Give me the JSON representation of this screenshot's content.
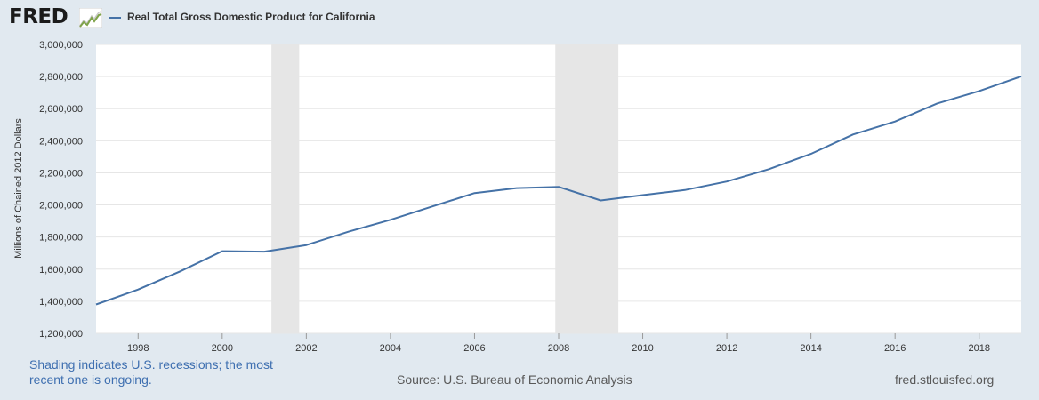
{
  "header": {
    "brand": "FRED",
    "brand_icon": "line-chart-icon",
    "legend_label": "Real Total Gross Domestic Product for California",
    "series_color": "#4572a7"
  },
  "footer": {
    "note": "Shading indicates U.S. recessions; the most recent one is ongoing.",
    "source": "Source: U.S. Bureau of Economic Analysis",
    "site": "fred.stlouisfed.org"
  },
  "chart_data": {
    "type": "line",
    "title": "",
    "xlabel": "",
    "ylabel": "Millions of Chained 2012 Dollars",
    "xlim": [
      1997,
      2019
    ],
    "ylim": [
      1200000,
      3000000
    ],
    "x_ticks": [
      "1998",
      "2000",
      "2002",
      "2004",
      "2006",
      "2008",
      "2010",
      "2012",
      "2014",
      "2016",
      "2018"
    ],
    "y_ticks": [
      "1,200,000",
      "1,400,000",
      "1,600,000",
      "1,800,000",
      "2,000,000",
      "2,200,000",
      "2,400,000",
      "2,600,000",
      "2,800,000",
      "3,000,000"
    ],
    "grid": true,
    "recessions": [
      [
        2001.17,
        2001.83
      ],
      [
        2007.92,
        2009.42
      ]
    ],
    "series": [
      {
        "name": "Real Total Gross Domestic Product for California",
        "color": "#4572a7",
        "x": [
          1997,
          1998,
          1999,
          2000,
          2001,
          2002,
          2003,
          2004,
          2005,
          2006,
          2007,
          2008,
          2009,
          2010,
          2011,
          2012,
          2013,
          2014,
          2015,
          2016,
          2017,
          2018,
          2019
        ],
        "values": [
          1380000,
          1473000,
          1586000,
          1712000,
          1709000,
          1750000,
          1833000,
          1907000,
          1991000,
          2074000,
          2105000,
          2113000,
          2028000,
          2061000,
          2093000,
          2146000,
          2223000,
          2318000,
          2439000,
          2520000,
          2632000,
          2710000,
          2801000
        ]
      }
    ]
  }
}
